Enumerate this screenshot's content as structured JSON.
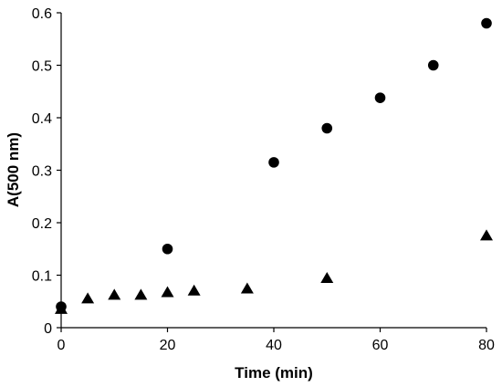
{
  "chart_data": {
    "type": "scatter",
    "title": "",
    "xlabel": "Time (min)",
    "ylabel": "A(500 nm)",
    "xlim": [
      0,
      80
    ],
    "ylim": [
      0,
      0.6
    ],
    "xticks": [
      0,
      20,
      40,
      60,
      80
    ],
    "yticks": [
      0,
      0.1,
      0.2,
      0.3,
      0.4,
      0.5,
      0.6
    ],
    "ytick_labels": [
      "0",
      "0.1",
      "0.2",
      "0.3",
      "0.4",
      "0.5",
      "0.6"
    ],
    "grid": false,
    "legend": "none",
    "series": [
      {
        "marker": "circle",
        "color": "#000000",
        "x": [
          0,
          20,
          40,
          50,
          60,
          70,
          80
        ],
        "y": [
          0.04,
          0.15,
          0.315,
          0.38,
          0.438,
          0.5,
          0.58
        ]
      },
      {
        "marker": "triangle",
        "color": "#000000",
        "x": [
          0,
          5,
          10,
          15,
          20,
          25,
          35,
          50,
          80
        ],
        "y": [
          0.035,
          0.055,
          0.062,
          0.062,
          0.067,
          0.07,
          0.074,
          0.094,
          0.175
        ]
      }
    ]
  }
}
